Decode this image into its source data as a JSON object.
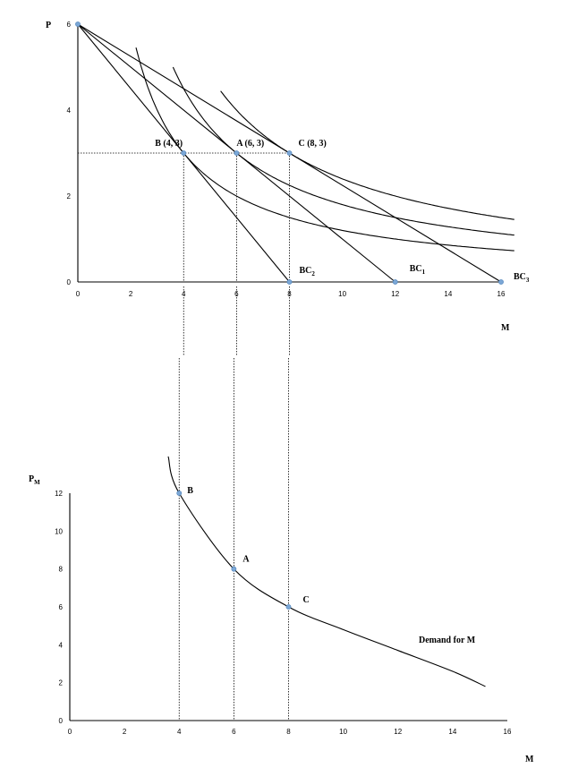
{
  "chart_data": [
    {
      "type": "line",
      "title": "",
      "xlabel": "M",
      "ylabel": "P",
      "xlim": [
        0,
        16
      ],
      "ylim": [
        0,
        6
      ],
      "xticks": [
        0,
        2,
        4,
        6,
        8,
        10,
        12,
        14,
        16
      ],
      "yticks": [
        0,
        2,
        4,
        6
      ],
      "budget_lines": [
        {
          "name": "BC2",
          "label_main": "BC",
          "label_sub": "2",
          "from": [
            0,
            6
          ],
          "to": [
            8,
            0
          ]
        },
        {
          "name": "BC1",
          "label_main": "BC",
          "label_sub": "1",
          "from": [
            0,
            6
          ],
          "to": [
            12,
            0
          ]
        },
        {
          "name": "BC3",
          "label_main": "BC",
          "label_sub": "3",
          "from": [
            0,
            6
          ],
          "to": [
            16,
            0
          ]
        }
      ],
      "indifference_curves": [
        {
          "k": 12,
          "x_start": 2.2,
          "x_end": 16.5
        },
        {
          "k": 18,
          "x_start": 3.6,
          "x_end": 16.5
        },
        {
          "k": 24,
          "x_start": 5.4,
          "x_end": 16.5
        }
      ],
      "points": [
        {
          "label": "B (4, 3)",
          "x": 4,
          "y": 3
        },
        {
          "label": "A (6, 3)",
          "x": 6,
          "y": 3
        },
        {
          "label": "C (8, 3)",
          "x": 8,
          "y": 3
        },
        {
          "label": "",
          "x": 0,
          "y": 6
        },
        {
          "label": "",
          "x": 8,
          "y": 0
        },
        {
          "label": "",
          "x": 12,
          "y": 0
        },
        {
          "label": "",
          "x": 16,
          "y": 0
        }
      ],
      "price_line_y": 3
    },
    {
      "type": "line",
      "title": "",
      "xlabel": "M",
      "ylabel_main": "P",
      "ylabel_sub": "M",
      "xlim": [
        0,
        16
      ],
      "ylim": [
        0,
        12
      ],
      "xticks": [
        0,
        2,
        4,
        6,
        8,
        10,
        12,
        14,
        16
      ],
      "yticks": [
        0,
        2,
        4,
        6,
        8,
        10,
        12
      ],
      "series": [
        {
          "name": "Demand for M",
          "x": [
            3.6,
            4,
            6,
            8,
            10,
            12,
            14,
            15.2
          ],
          "y": [
            14.6,
            12,
            8,
            6,
            4.8,
            3.7,
            2.6,
            1.8
          ]
        }
      ],
      "points": [
        {
          "label": "B",
          "x": 4,
          "y": 12
        },
        {
          "label": "A",
          "x": 6,
          "y": 8
        },
        {
          "label": "C",
          "x": 8,
          "y": 6
        }
      ]
    }
  ]
}
